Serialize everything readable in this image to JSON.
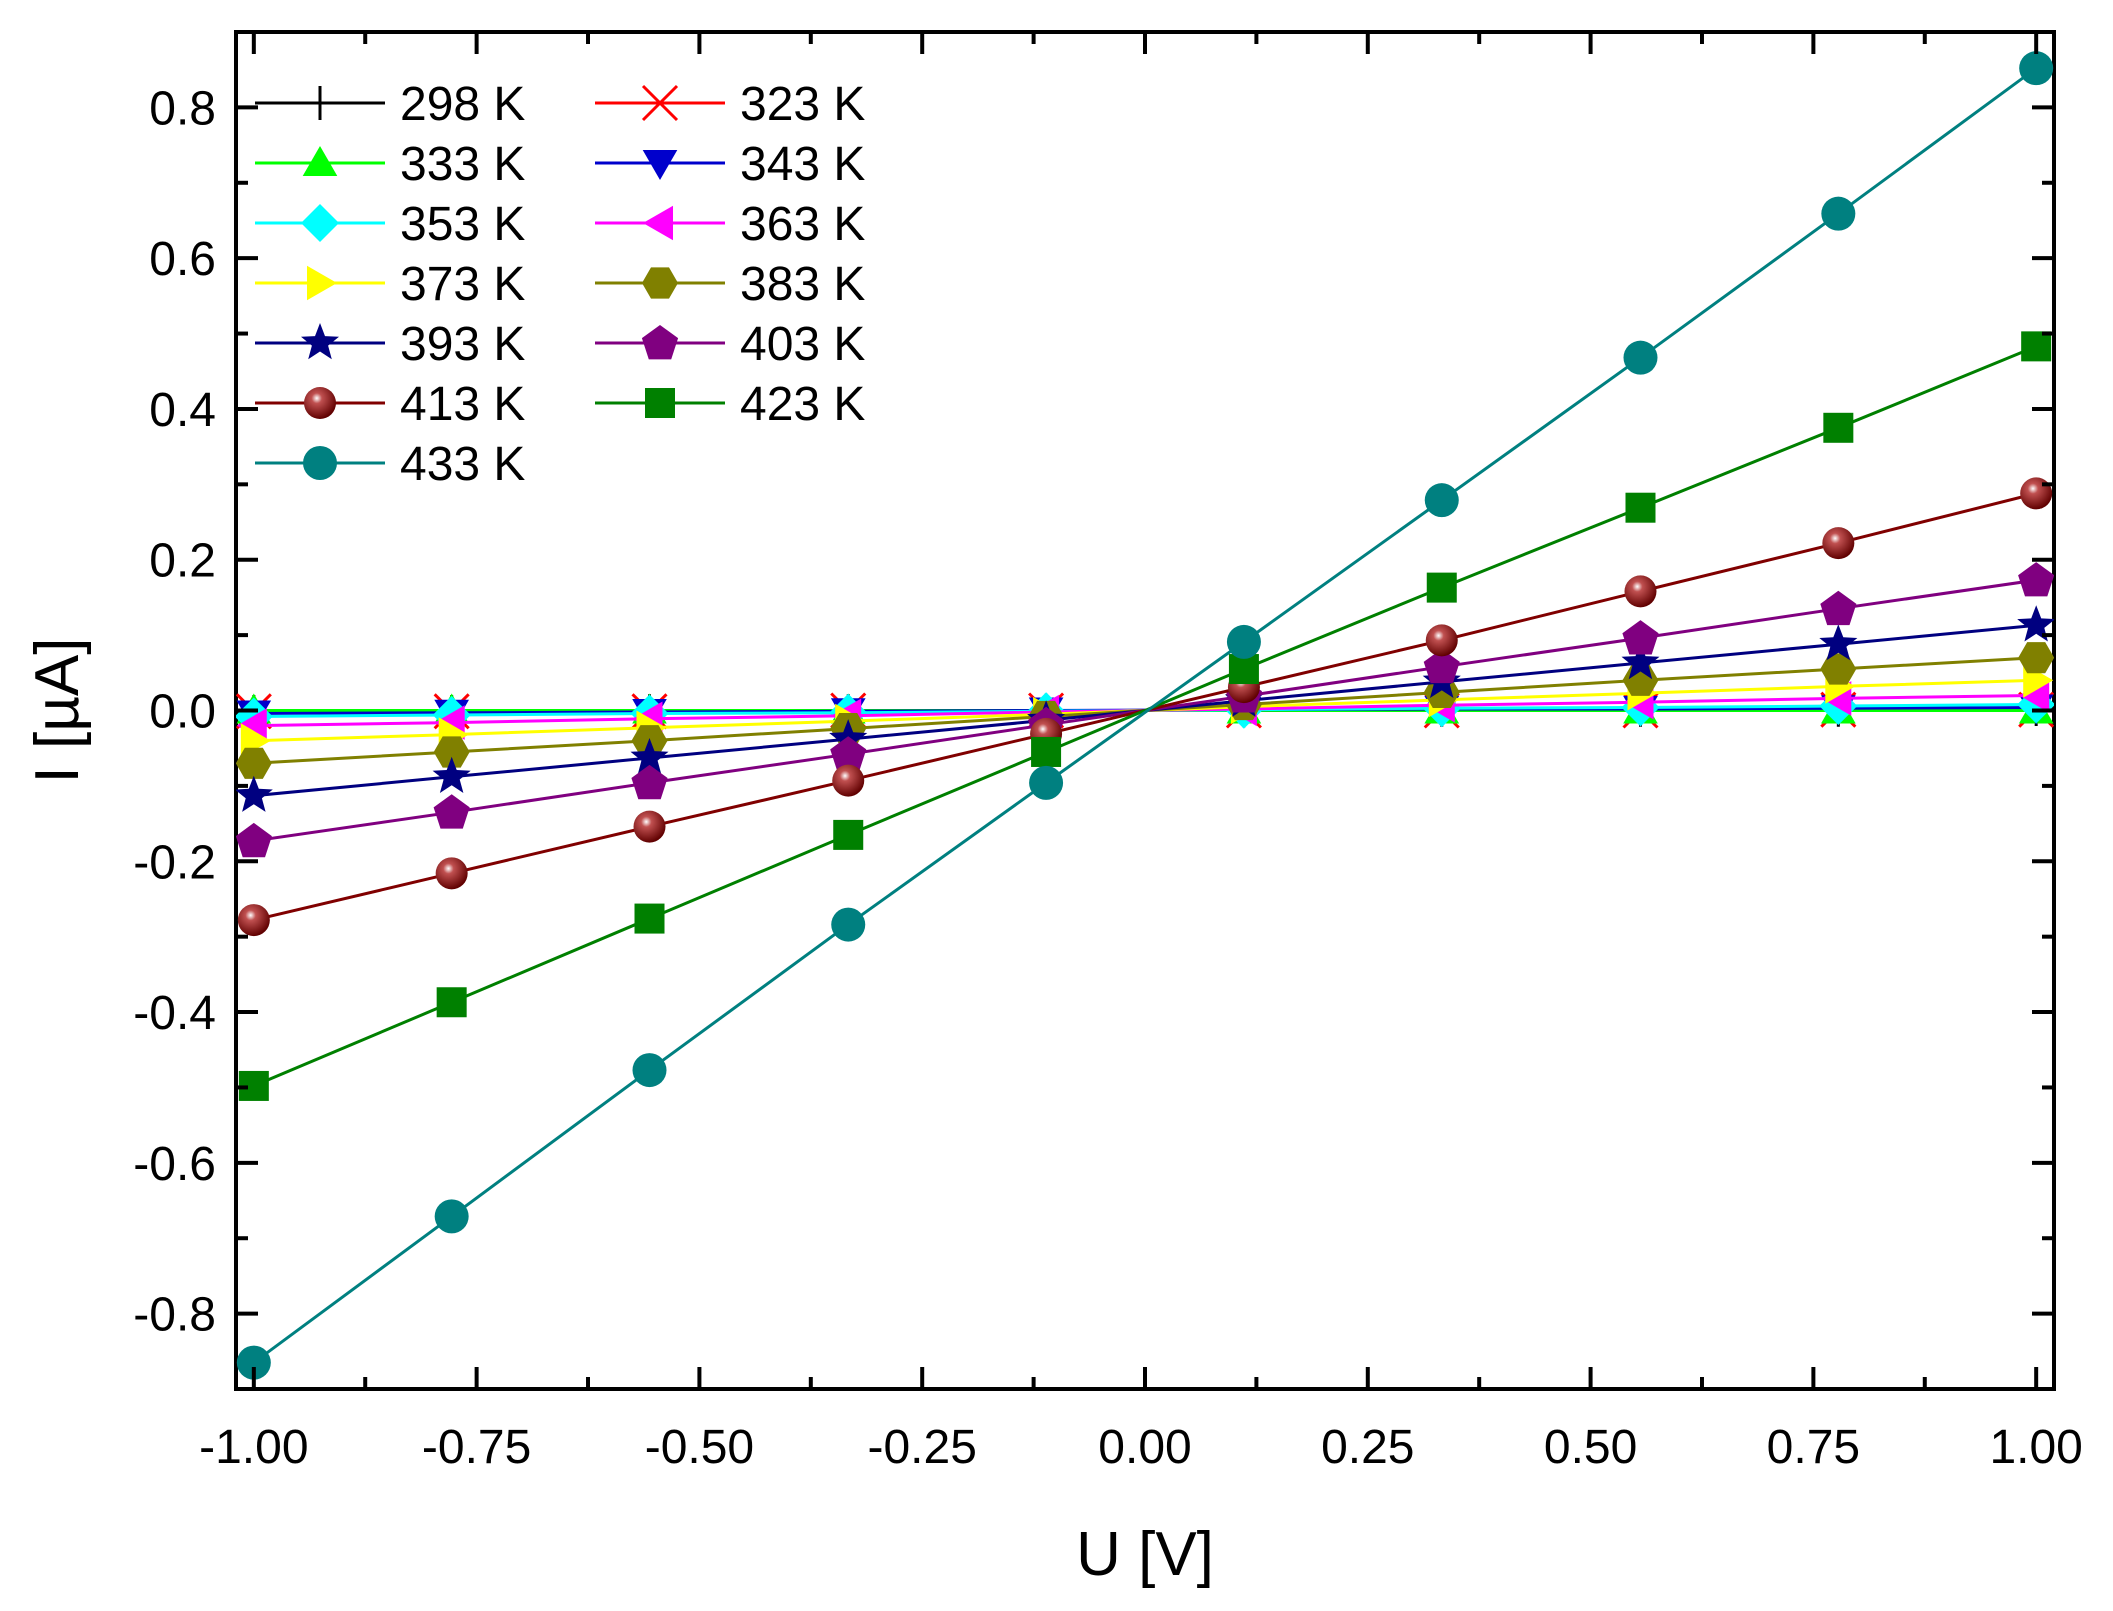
{
  "chart_data": {
    "type": "line",
    "title": "",
    "xlabel": "U [V]",
    "ylabel": "I [µA]",
    "xlim": [
      -1.02,
      1.02
    ],
    "ylim": [
      -0.9,
      0.9
    ],
    "xticks": [
      -1.0,
      -0.75,
      -0.5,
      -0.25,
      0.0,
      0.25,
      0.5,
      0.75,
      1.0
    ],
    "xtick_labels": [
      "-1.00",
      "-0.75",
      "-0.50",
      "-0.25",
      "0.00",
      "0.25",
      "0.50",
      "0.75",
      "1.00"
    ],
    "yticks": [
      -0.8,
      -0.6,
      -0.4,
      -0.2,
      0.0,
      0.2,
      0.4,
      0.6,
      0.8
    ],
    "ytick_labels": [
      "-0.8",
      "-0.6",
      "-0.4",
      "-0.2",
      "0.0",
      "0.2",
      "0.4",
      "0.6",
      "0.8"
    ],
    "grid": false,
    "legend_position": "top-left",
    "x": [
      -1.0,
      -0.778,
      -0.556,
      -0.333,
      -0.111,
      0.111,
      0.333,
      0.556,
      0.778,
      1.0
    ],
    "series": [
      {
        "name": "298 K",
        "color": "#000000",
        "marker": "plus",
        "values": [
          -0.002,
          -0.002,
          -0.001,
          -0.001,
          0.0,
          0.0,
          0.001,
          0.001,
          0.001,
          0.002
        ]
      },
      {
        "name": "323 K",
        "color": "#ff0000",
        "marker": "cross",
        "values": [
          -0.001,
          -0.001,
          -0.001,
          0.0,
          0.0,
          0.0,
          0.0,
          0.0,
          0.001,
          0.001
        ]
      },
      {
        "name": "333 K",
        "color": "#00ff00",
        "marker": "triangle-up",
        "values": [
          0.0,
          0.0,
          0.0,
          0.0,
          0.0,
          0.0,
          0.0,
          0.0,
          0.0,
          0.0
        ]
      },
      {
        "name": "343 K",
        "color": "#0000cc",
        "marker": "triangle-down",
        "values": [
          -0.004,
          -0.003,
          -0.002,
          -0.001,
          0.0,
          0.001,
          0.002,
          0.002,
          0.003,
          0.004
        ]
      },
      {
        "name": "353 K",
        "color": "#00ffff",
        "marker": "diamond",
        "values": [
          -0.008,
          -0.006,
          -0.004,
          -0.003,
          -0.001,
          0.001,
          0.003,
          0.004,
          0.006,
          0.008
        ]
      },
      {
        "name": "363 K",
        "color": "#ff00ff",
        "marker": "triangle-left",
        "values": [
          -0.02,
          -0.016,
          -0.011,
          -0.007,
          -0.002,
          0.002,
          0.007,
          0.011,
          0.016,
          0.02
        ]
      },
      {
        "name": "373 K",
        "color": "#ffff00",
        "marker": "triangle-right",
        "values": [
          -0.04,
          -0.032,
          -0.023,
          -0.014,
          -0.005,
          0.005,
          0.014,
          0.023,
          0.032,
          0.04
        ]
      },
      {
        "name": "383 K",
        "color": "#808000",
        "marker": "hexagon",
        "values": [
          -0.07,
          -0.055,
          -0.04,
          -0.024,
          -0.008,
          0.008,
          0.024,
          0.04,
          0.055,
          0.07
        ]
      },
      {
        "name": "393 K",
        "color": "#000080",
        "marker": "star",
        "values": [
          -0.113,
          -0.088,
          -0.063,
          -0.038,
          -0.013,
          0.013,
          0.038,
          0.063,
          0.088,
          0.113
        ]
      },
      {
        "name": "403 K",
        "color": "#800080",
        "marker": "pentagon",
        "values": [
          -0.173,
          -0.135,
          -0.096,
          -0.058,
          -0.019,
          0.019,
          0.058,
          0.096,
          0.135,
          0.173
        ]
      },
      {
        "name": "413 K",
        "color": "#800000",
        "marker": "sphere",
        "values": [
          -0.278,
          -0.216,
          -0.154,
          -0.093,
          -0.031,
          0.031,
          0.093,
          0.158,
          0.222,
          0.288
        ]
      },
      {
        "name": "423 K",
        "color": "#008000",
        "marker": "square",
        "values": [
          -0.498,
          -0.387,
          -0.276,
          -0.165,
          -0.055,
          0.055,
          0.163,
          0.269,
          0.375,
          0.483
        ]
      },
      {
        "name": "433 K",
        "color": "#008080",
        "marker": "circle",
        "values": [
          -0.865,
          -0.671,
          -0.477,
          -0.284,
          -0.096,
          0.091,
          0.279,
          0.468,
          0.659,
          0.852
        ]
      }
    ]
  }
}
